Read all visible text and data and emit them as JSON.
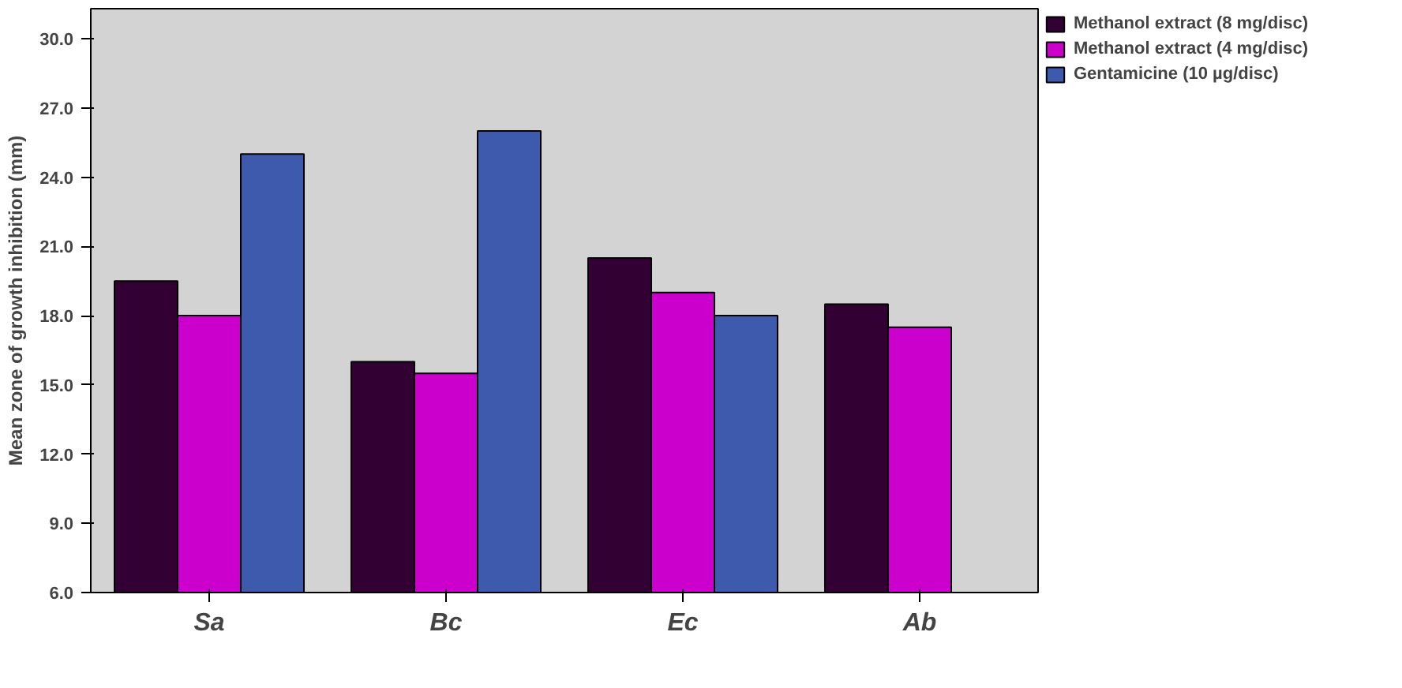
{
  "chart_data": {
    "type": "bar",
    "ylabel": "Mean zone of growth inhibition (mm)",
    "categories": [
      "Sa",
      "Bc",
      "Ec",
      "Ab"
    ],
    "series": [
      {
        "name": "Methanol extract (8 mg/disc)",
        "color": "#330033",
        "values": [
          19.5,
          16.0,
          20.5,
          18.5
        ]
      },
      {
        "name": "Methanol extract (4 mg/disc)",
        "color": "#cc00cc",
        "values": [
          18.0,
          15.5,
          19.0,
          17.5
        ]
      },
      {
        "name": "Gentamicine (10 µg/disc)",
        "color": "#3d5aad",
        "values": [
          25.0,
          26.0,
          18.0,
          null
        ]
      }
    ],
    "ylim": [
      6,
      31.3
    ],
    "yticks": [
      {
        "value": 6,
        "label": "6.0"
      },
      {
        "value": 9,
        "label": "9.0"
      },
      {
        "value": 12,
        "label": "12.0"
      },
      {
        "value": 15,
        "label": "15.0"
      },
      {
        "value": 18,
        "label": "18.0"
      },
      {
        "value": 21,
        "label": "21.0"
      },
      {
        "value": 24,
        "label": "24.0"
      },
      {
        "value": 27,
        "label": "27.0"
      },
      {
        "value": 30,
        "label": "30.0"
      }
    ],
    "grid": false,
    "legend": "top right"
  }
}
